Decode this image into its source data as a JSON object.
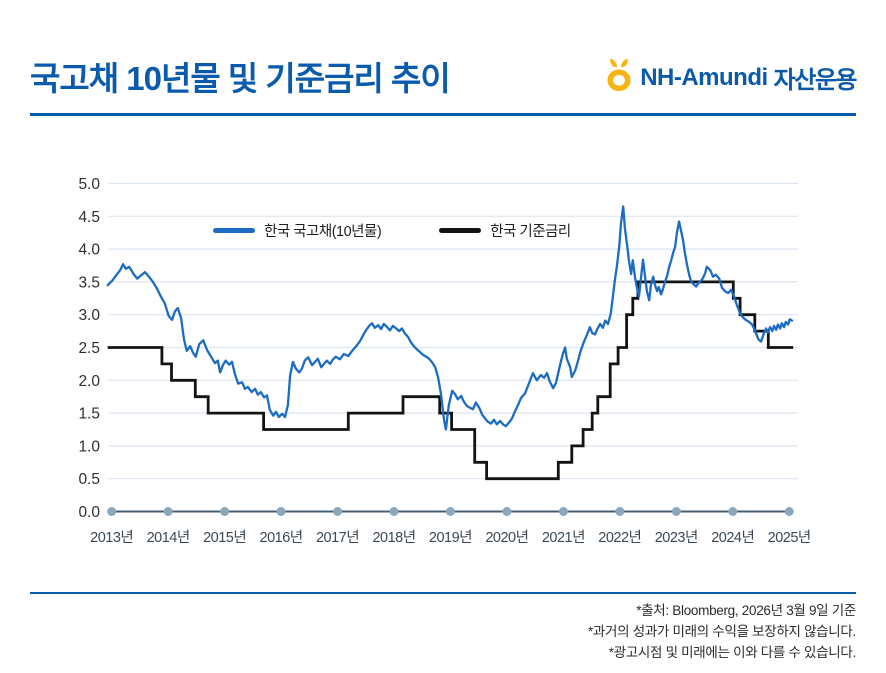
{
  "header": {
    "title": "국고채 10년물 및 기준금리 추이",
    "logo": {
      "brand": "NH-Amundi",
      "suffix": "자산운용",
      "mark_color": "#F8B411",
      "text_color": "#0A5AA9"
    }
  },
  "footer": {
    "notes": [
      "*출처: Bloomberg, 2026년 3월 9일 기준",
      "*과거의 성과가 미래의 수익을 보장하지 않습니다.",
      "*광고시점 및 미래에는 이와 다를 수 있습니다."
    ]
  },
  "colors": {
    "accent_blue": "#0B5BAD",
    "bond_line": "#1B6CC2",
    "base_rate_line": "#131313",
    "gridline": "#DCE6F0",
    "axis_line": "#475D70",
    "axis_dot": "#8BA7BC",
    "tick_text": "#2F2F2F",
    "xlabel_text": "#3B4854"
  },
  "chart_data": {
    "type": "line",
    "title": "",
    "xlabel": "",
    "ylabel": "",
    "unit": "%",
    "grid": "horizontal",
    "legend_position": "top-inside",
    "x_axis": {
      "tick_years": [
        2013,
        2014,
        2015,
        2016,
        2017,
        2018,
        2019,
        2020,
        2021,
        2022,
        2023,
        2024,
        2025
      ],
      "tick_labels": [
        "2013년",
        "2014년",
        "2015년",
        "2016년",
        "2017년",
        "2018년",
        "2019년",
        "2020년",
        "2021년",
        "2022년",
        "2023년",
        "2024년",
        "2025년"
      ],
      "range": [
        2012.93,
        2025.07
      ]
    },
    "y_axis": {
      "ticks": [
        0.0,
        0.5,
        1.0,
        1.5,
        2.0,
        2.5,
        3.0,
        3.5,
        4.0,
        4.5,
        5.0
      ],
      "range": [
        0,
        5
      ]
    },
    "series": [
      {
        "name": "한국 국고채(10년물)",
        "color": "#1B6CC2",
        "style": "line",
        "points": [
          [
            2012.93,
            3.45
          ],
          [
            2013.01,
            3.52
          ],
          [
            2013.08,
            3.6
          ],
          [
            2013.15,
            3.68
          ],
          [
            2013.2,
            3.77
          ],
          [
            2013.25,
            3.7
          ],
          [
            2013.31,
            3.73
          ],
          [
            2013.38,
            3.63
          ],
          [
            2013.45,
            3.55
          ],
          [
            2013.52,
            3.6
          ],
          [
            2013.59,
            3.65
          ],
          [
            2013.66,
            3.58
          ],
          [
            2013.73,
            3.5
          ],
          [
            2013.8,
            3.4
          ],
          [
            2013.87,
            3.28
          ],
          [
            2013.94,
            3.17
          ],
          [
            2014.01,
            2.98
          ],
          [
            2014.07,
            2.92
          ],
          [
            2014.12,
            3.05
          ],
          [
            2014.17,
            3.1
          ],
          [
            2014.23,
            2.95
          ],
          [
            2014.28,
            2.62
          ],
          [
            2014.33,
            2.45
          ],
          [
            2014.39,
            2.52
          ],
          [
            2014.44,
            2.42
          ],
          [
            2014.49,
            2.36
          ],
          [
            2014.55,
            2.55
          ],
          [
            2014.62,
            2.61
          ],
          [
            2014.69,
            2.46
          ],
          [
            2014.76,
            2.36
          ],
          [
            2014.83,
            2.26
          ],
          [
            2014.88,
            2.3
          ],
          [
            2014.92,
            2.12
          ],
          [
            2014.97,
            2.23
          ],
          [
            2015.02,
            2.3
          ],
          [
            2015.08,
            2.24
          ],
          [
            2015.13,
            2.28
          ],
          [
            2015.18,
            2.1
          ],
          [
            2015.24,
            1.95
          ],
          [
            2015.31,
            1.97
          ],
          [
            2015.36,
            1.87
          ],
          [
            2015.41,
            1.9
          ],
          [
            2015.48,
            1.82
          ],
          [
            2015.54,
            1.87
          ],
          [
            2015.59,
            1.78
          ],
          [
            2015.64,
            1.82
          ],
          [
            2015.7,
            1.74
          ],
          [
            2015.75,
            1.77
          ],
          [
            2015.8,
            1.55
          ],
          [
            2015.86,
            1.46
          ],
          [
            2015.91,
            1.52
          ],
          [
            2015.96,
            1.44
          ],
          [
            2016.02,
            1.49
          ],
          [
            2016.07,
            1.44
          ],
          [
            2016.12,
            1.62
          ],
          [
            2016.16,
            2.07
          ],
          [
            2016.21,
            2.28
          ],
          [
            2016.26,
            2.18
          ],
          [
            2016.32,
            2.12
          ],
          [
            2016.37,
            2.18
          ],
          [
            2016.42,
            2.3
          ],
          [
            2016.48,
            2.35
          ],
          [
            2016.55,
            2.23
          ],
          [
            2016.6,
            2.28
          ],
          [
            2016.65,
            2.33
          ],
          [
            2016.71,
            2.2
          ],
          [
            2016.76,
            2.25
          ],
          [
            2016.81,
            2.3
          ],
          [
            2016.87,
            2.25
          ],
          [
            2016.92,
            2.32
          ],
          [
            2016.97,
            2.36
          ],
          [
            2017.04,
            2.32
          ],
          [
            2017.11,
            2.4
          ],
          [
            2017.19,
            2.37
          ],
          [
            2017.26,
            2.45
          ],
          [
            2017.33,
            2.52
          ],
          [
            2017.4,
            2.6
          ],
          [
            2017.45,
            2.68
          ],
          [
            2017.5,
            2.76
          ],
          [
            2017.56,
            2.83
          ],
          [
            2017.61,
            2.87
          ],
          [
            2017.66,
            2.8
          ],
          [
            2017.72,
            2.84
          ],
          [
            2017.77,
            2.78
          ],
          [
            2017.82,
            2.86
          ],
          [
            2017.88,
            2.81
          ],
          [
            2017.93,
            2.76
          ],
          [
            2017.98,
            2.83
          ],
          [
            2018.04,
            2.79
          ],
          [
            2018.09,
            2.75
          ],
          [
            2018.14,
            2.79
          ],
          [
            2018.19,
            2.72
          ],
          [
            2018.25,
            2.66
          ],
          [
            2018.3,
            2.58
          ],
          [
            2018.35,
            2.52
          ],
          [
            2018.41,
            2.47
          ],
          [
            2018.46,
            2.43
          ],
          [
            2018.51,
            2.39
          ],
          [
            2018.57,
            2.36
          ],
          [
            2018.62,
            2.33
          ],
          [
            2018.67,
            2.28
          ],
          [
            2018.73,
            2.2
          ],
          [
            2018.78,
            2.05
          ],
          [
            2018.83,
            1.8
          ],
          [
            2018.89,
            1.38
          ],
          [
            2018.92,
            1.25
          ],
          [
            2018.97,
            1.62
          ],
          [
            2019.03,
            1.84
          ],
          [
            2019.08,
            1.79
          ],
          [
            2019.13,
            1.71
          ],
          [
            2019.19,
            1.76
          ],
          [
            2019.24,
            1.67
          ],
          [
            2019.29,
            1.61
          ],
          [
            2019.35,
            1.58
          ],
          [
            2019.4,
            1.56
          ],
          [
            2019.45,
            1.66
          ],
          [
            2019.51,
            1.58
          ],
          [
            2019.56,
            1.48
          ],
          [
            2019.61,
            1.42
          ],
          [
            2019.66,
            1.37
          ],
          [
            2019.72,
            1.34
          ],
          [
            2019.77,
            1.4
          ],
          [
            2019.82,
            1.33
          ],
          [
            2019.88,
            1.38
          ],
          [
            2019.93,
            1.33
          ],
          [
            2019.98,
            1.3
          ],
          [
            2020.04,
            1.36
          ],
          [
            2020.09,
            1.42
          ],
          [
            2020.14,
            1.52
          ],
          [
            2020.2,
            1.63
          ],
          [
            2020.25,
            1.73
          ],
          [
            2020.32,
            1.8
          ],
          [
            2020.39,
            1.95
          ],
          [
            2020.46,
            2.11
          ],
          [
            2020.53,
            2.0
          ],
          [
            2020.6,
            2.08
          ],
          [
            2020.66,
            2.04
          ],
          [
            2020.71,
            2.11
          ],
          [
            2020.76,
            1.98
          ],
          [
            2020.82,
            1.88
          ],
          [
            2020.87,
            1.96
          ],
          [
            2020.94,
            2.23
          ],
          [
            2020.99,
            2.4
          ],
          [
            2021.03,
            2.5
          ],
          [
            2021.06,
            2.33
          ],
          [
            2021.12,
            2.2
          ],
          [
            2021.15,
            2.05
          ],
          [
            2021.21,
            2.15
          ],
          [
            2021.26,
            2.3
          ],
          [
            2021.31,
            2.46
          ],
          [
            2021.37,
            2.6
          ],
          [
            2021.42,
            2.7
          ],
          [
            2021.47,
            2.81
          ],
          [
            2021.51,
            2.72
          ],
          [
            2021.56,
            2.7
          ],
          [
            2021.6,
            2.78
          ],
          [
            2021.65,
            2.86
          ],
          [
            2021.7,
            2.8
          ],
          [
            2021.74,
            2.91
          ],
          [
            2021.79,
            2.86
          ],
          [
            2021.84,
            3.02
          ],
          [
            2021.88,
            3.3
          ],
          [
            2021.91,
            3.52
          ],
          [
            2021.95,
            3.75
          ],
          [
            2021.99,
            4.05
          ],
          [
            2022.02,
            4.4
          ],
          [
            2022.06,
            4.65
          ],
          [
            2022.09,
            4.32
          ],
          [
            2022.13,
            4.05
          ],
          [
            2022.16,
            3.83
          ],
          [
            2022.2,
            3.62
          ],
          [
            2022.23,
            3.83
          ],
          [
            2022.27,
            3.56
          ],
          [
            2022.3,
            3.42
          ],
          [
            2022.34,
            3.28
          ],
          [
            2022.38,
            3.6
          ],
          [
            2022.41,
            3.84
          ],
          [
            2022.45,
            3.56
          ],
          [
            2022.48,
            3.36
          ],
          [
            2022.52,
            3.22
          ],
          [
            2022.55,
            3.45
          ],
          [
            2022.59,
            3.58
          ],
          [
            2022.62,
            3.46
          ],
          [
            2022.66,
            3.36
          ],
          [
            2022.69,
            3.42
          ],
          [
            2022.73,
            3.31
          ],
          [
            2022.76,
            3.38
          ],
          [
            2022.8,
            3.5
          ],
          [
            2022.84,
            3.6
          ],
          [
            2022.87,
            3.72
          ],
          [
            2022.91,
            3.83
          ],
          [
            2022.94,
            3.93
          ],
          [
            2022.98,
            4.04
          ],
          [
            2023.01,
            4.25
          ],
          [
            2023.05,
            4.42
          ],
          [
            2023.08,
            4.3
          ],
          [
            2023.12,
            4.13
          ],
          [
            2023.15,
            3.95
          ],
          [
            2023.19,
            3.76
          ],
          [
            2023.23,
            3.6
          ],
          [
            2023.26,
            3.51
          ],
          [
            2023.3,
            3.47
          ],
          [
            2023.35,
            3.43
          ],
          [
            2023.4,
            3.49
          ],
          [
            2023.46,
            3.54
          ],
          [
            2023.51,
            3.63
          ],
          [
            2023.54,
            3.73
          ],
          [
            2023.6,
            3.68
          ],
          [
            2023.65,
            3.58
          ],
          [
            2023.7,
            3.61
          ],
          [
            2023.76,
            3.55
          ],
          [
            2023.81,
            3.41
          ],
          [
            2023.86,
            3.36
          ],
          [
            2023.92,
            3.33
          ],
          [
            2023.97,
            3.38
          ],
          [
            2024.02,
            3.28
          ],
          [
            2024.08,
            3.13
          ],
          [
            2024.13,
            3.02
          ],
          [
            2024.18,
            2.96
          ],
          [
            2024.23,
            2.92
          ],
          [
            2024.29,
            2.89
          ],
          [
            2024.34,
            2.85
          ],
          [
            2024.39,
            2.77
          ],
          [
            2024.45,
            2.63
          ],
          [
            2024.5,
            2.59
          ],
          [
            2024.55,
            2.71
          ],
          [
            2024.59,
            2.79
          ],
          [
            2024.62,
            2.73
          ],
          [
            2024.66,
            2.81
          ],
          [
            2024.7,
            2.75
          ],
          [
            2024.73,
            2.83
          ],
          [
            2024.77,
            2.77
          ],
          [
            2024.8,
            2.85
          ],
          [
            2024.84,
            2.79
          ],
          [
            2024.87,
            2.87
          ],
          [
            2024.91,
            2.81
          ],
          [
            2024.94,
            2.89
          ],
          [
            2024.98,
            2.85
          ],
          [
            2025.01,
            2.93
          ],
          [
            2025.05,
            2.91
          ]
        ]
      },
      {
        "name": "한국 기준금리",
        "color": "#131313",
        "style": "step",
        "end_x": 2025.07,
        "points": [
          [
            2012.93,
            2.5
          ],
          [
            2013.89,
            2.25
          ],
          [
            2014.06,
            2.0
          ],
          [
            2014.48,
            1.75
          ],
          [
            2014.71,
            1.5
          ],
          [
            2015.69,
            1.25
          ],
          [
            2017.19,
            1.5
          ],
          [
            2018.16,
            1.75
          ],
          [
            2018.81,
            1.5
          ],
          [
            2019.02,
            1.25
          ],
          [
            2019.43,
            0.75
          ],
          [
            2019.64,
            0.5
          ],
          [
            2020.91,
            0.75
          ],
          [
            2021.15,
            1.0
          ],
          [
            2021.35,
            1.25
          ],
          [
            2021.51,
            1.5
          ],
          [
            2021.61,
            1.75
          ],
          [
            2021.83,
            2.25
          ],
          [
            2021.97,
            2.5
          ],
          [
            2022.12,
            3.0
          ],
          [
            2022.23,
            3.25
          ],
          [
            2022.32,
            3.5
          ],
          [
            2024.01,
            3.25
          ],
          [
            2024.13,
            3.0
          ],
          [
            2024.39,
            2.75
          ],
          [
            2024.63,
            2.5
          ]
        ]
      }
    ]
  }
}
